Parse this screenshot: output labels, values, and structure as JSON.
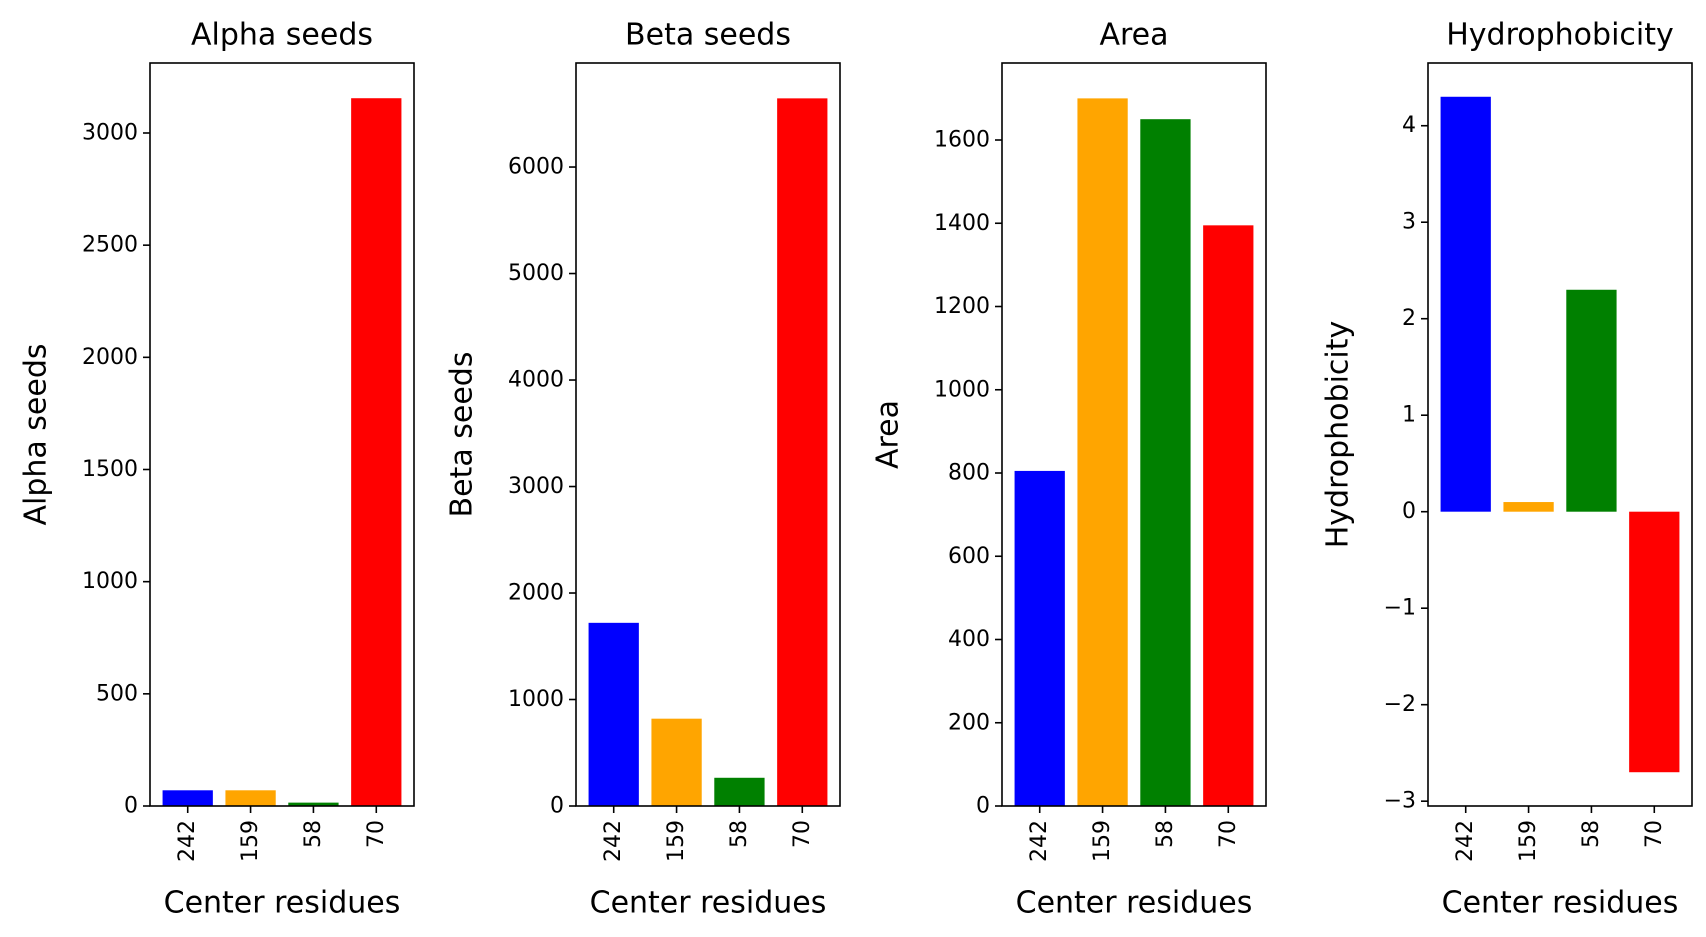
{
  "figure": {
    "panels_count": 4
  },
  "chart_data": [
    {
      "type": "bar",
      "title": "Alpha seeds",
      "xlabel": "Center residues",
      "ylabel": "Alpha seeds",
      "categories": [
        "242",
        "159",
        "58",
        "70"
      ],
      "values": [
        70,
        70,
        15,
        3155
      ],
      "colors": [
        "#0000ff",
        "#ffa500",
        "#008000",
        "#ff0000"
      ],
      "ylim": [
        0,
        3312
      ],
      "yticks": [
        0,
        500,
        1000,
        1500,
        2000,
        2500,
        3000
      ],
      "ytick_labels": [
        "0",
        "500",
        "1000",
        "1500",
        "2000",
        "2500",
        "3000"
      ]
    },
    {
      "type": "bar",
      "title": "Beta seeds",
      "xlabel": "Center residues",
      "ylabel": "Beta seeds",
      "categories": [
        "242",
        "159",
        "58",
        "70"
      ],
      "values": [
        1720,
        820,
        265,
        6645
      ],
      "colors": [
        "#0000ff",
        "#ffa500",
        "#008000",
        "#ff0000"
      ],
      "ylim": [
        0,
        6977
      ],
      "yticks": [
        0,
        1000,
        2000,
        3000,
        4000,
        5000,
        6000
      ],
      "ytick_labels": [
        "0",
        "1000",
        "2000",
        "3000",
        "4000",
        "5000",
        "6000"
      ]
    },
    {
      "type": "bar",
      "title": "Area",
      "xlabel": "Center residues",
      "ylabel": "Area",
      "categories": [
        "242",
        "159",
        "58",
        "70"
      ],
      "values": [
        805,
        1700,
        1650,
        1395
      ],
      "colors": [
        "#0000ff",
        "#ffa500",
        "#008000",
        "#ff0000"
      ],
      "ylim": [
        0,
        1785
      ],
      "yticks": [
        0,
        200,
        400,
        600,
        800,
        1000,
        1200,
        1400,
        1600
      ],
      "ytick_labels": [
        "0",
        "200",
        "400",
        "600",
        "800",
        "1000",
        "1200",
        "1400",
        "1600"
      ]
    },
    {
      "type": "bar",
      "title": "Hydrophobicity",
      "xlabel": "Center residues",
      "ylabel": "Hydrophobicity",
      "categories": [
        "242",
        "159",
        "58",
        "70"
      ],
      "values": [
        4.3,
        0.1,
        2.3,
        -2.7
      ],
      "colors": [
        "#0000ff",
        "#ffa500",
        "#008000",
        "#ff0000"
      ],
      "ylim": [
        -3.05,
        4.65
      ],
      "yticks": [
        -3,
        -2,
        -1,
        0,
        1,
        2,
        3,
        4
      ],
      "ytick_labels": [
        "−3",
        "−2",
        "−1",
        "0",
        "1",
        "2",
        "3",
        "4"
      ]
    }
  ]
}
